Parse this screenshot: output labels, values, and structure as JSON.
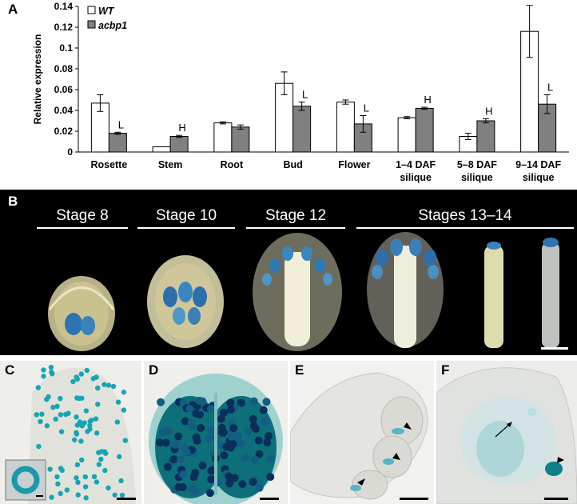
{
  "panels": {
    "a": "A",
    "b": "B",
    "c": "C",
    "d": "D",
    "e": "E",
    "f": "F"
  },
  "chart_data": {
    "type": "bar",
    "ylabel": "Relative expression",
    "ylim": [
      0,
      0.14
    ],
    "yticks": [
      "0",
      "0.02",
      "0.04",
      "0.06",
      "0.08",
      "0.1",
      "0.12",
      "0.14"
    ],
    "categories": [
      [
        "Rosette"
      ],
      [
        "Stem"
      ],
      [
        "Root"
      ],
      [
        "Bud"
      ],
      [
        "Flower"
      ],
      [
        "1–4 DAF",
        "silique"
      ],
      [
        "5–8 DAF",
        "silique"
      ],
      [
        "9–14 DAF",
        "silique"
      ]
    ],
    "series": [
      {
        "name": "WT",
        "color": "#ffffff",
        "values": [
          0.047,
          0.005,
          0.028,
          0.066,
          0.048,
          0.033,
          0.015,
          0.116
        ],
        "errors": [
          0.008,
          0.0,
          0.001,
          0.011,
          0.002,
          0.001,
          0.003,
          0.025
        ]
      },
      {
        "name": "acbp1",
        "color": "#808080",
        "values": [
          0.018,
          0.015,
          0.024,
          0.044,
          0.027,
          0.042,
          0.03,
          0.046
        ],
        "errors": [
          0.001,
          0.001,
          0.002,
          0.004,
          0.008,
          0.001,
          0.002,
          0.009
        ]
      }
    ],
    "annotations": [
      "L",
      "H",
      "",
      "L",
      "L",
      "H",
      "H",
      "L"
    ],
    "legend": "top-left"
  },
  "stages": [
    "Stage 8",
    "Stage 10",
    "Stage 12",
    "Stages 13–14"
  ]
}
